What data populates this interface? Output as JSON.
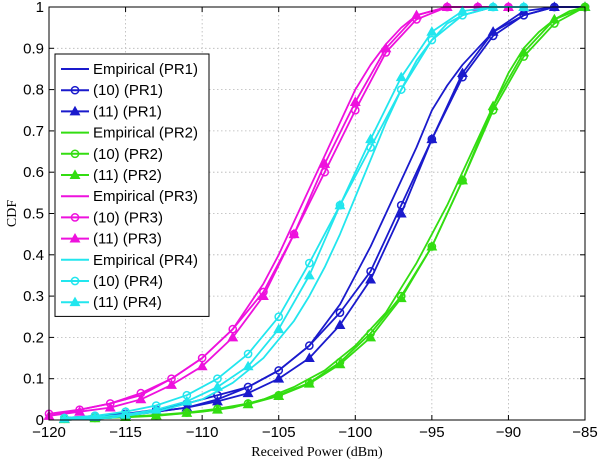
{
  "chart_data": {
    "type": "line",
    "xlabel": "Received Power (dBm)",
    "ylabel": "CDF",
    "xlim": [
      -120,
      -85
    ],
    "ylim": [
      0,
      1
    ],
    "xticks": [
      -120,
      -115,
      -110,
      -105,
      -100,
      -95,
      -90,
      -85
    ],
    "xtick_labels": [
      "−120",
      "−115",
      "−110",
      "−105",
      "−100",
      "−95",
      "−90",
      "−85"
    ],
    "yticks": [
      0,
      0.1,
      0.2,
      0.3,
      0.4,
      0.5,
      0.6,
      0.7,
      0.8,
      0.9,
      1
    ],
    "ytick_labels": [
      "0",
      "0.1",
      "0.2",
      "0.3",
      "0.4",
      "0.5",
      "0.6",
      "0.7",
      "0.8",
      "0.9",
      "1"
    ],
    "grid": true,
    "legend_position": "left",
    "colors": {
      "PR1": "#1a1acc",
      "PR2": "#33dd11",
      "PR3": "#ee11dd",
      "PR4": "#22e6ee"
    },
    "series": [
      {
        "name": "Empirical (PR1)",
        "group": "PR1",
        "marker": "none",
        "x": [
          -119,
          -116,
          -113,
          -111,
          -109,
          -107,
          -105,
          -103,
          -101,
          -100,
          -99,
          -98,
          -97,
          -96,
          -95,
          -94,
          -93,
          -92,
          -91,
          -90,
          -89,
          -88,
          -87,
          -85
        ],
        "y": [
          0,
          0.005,
          0.02,
          0.03,
          0.05,
          0.08,
          0.12,
          0.18,
          0.28,
          0.35,
          0.42,
          0.5,
          0.58,
          0.66,
          0.75,
          0.81,
          0.86,
          0.9,
          0.94,
          0.96,
          0.98,
          0.99,
          1,
          1
        ]
      },
      {
        "name": "(10) (PR1)",
        "group": "PR1",
        "marker": "circle",
        "x": [
          -119,
          -117,
          -115,
          -113,
          -111,
          -109,
          -107,
          -105,
          -103,
          -101,
          -99,
          -97,
          -95,
          -93,
          -91,
          -89,
          -87,
          -85
        ],
        "y": [
          0.005,
          0.01,
          0.015,
          0.025,
          0.04,
          0.06,
          0.08,
          0.12,
          0.18,
          0.26,
          0.36,
          0.52,
          0.68,
          0.83,
          0.93,
          0.98,
          1,
          1
        ]
      },
      {
        "name": "(11) (PR1)",
        "group": "PR1",
        "marker": "triangle",
        "x": [
          -119,
          -117,
          -115,
          -113,
          -111,
          -109,
          -107,
          -105,
          -103,
          -101,
          -99,
          -97,
          -95,
          -93,
          -91,
          -89,
          -87,
          -85
        ],
        "y": [
          0.003,
          0.007,
          0.012,
          0.02,
          0.03,
          0.045,
          0.065,
          0.1,
          0.15,
          0.23,
          0.34,
          0.5,
          0.68,
          0.84,
          0.94,
          0.99,
          1,
          1
        ]
      },
      {
        "name": "Empirical (PR2)",
        "group": "PR2",
        "marker": "none",
        "x": [
          -119,
          -116,
          -113,
          -110,
          -108,
          -106,
          -104,
          -102,
          -100,
          -98,
          -97,
          -96,
          -95,
          -94,
          -93,
          -92,
          -91,
          -90,
          -89,
          -88,
          -87,
          -86,
          -85
        ],
        "y": [
          0,
          0.005,
          0.01,
          0.02,
          0.03,
          0.05,
          0.08,
          0.12,
          0.18,
          0.26,
          0.32,
          0.38,
          0.45,
          0.52,
          0.6,
          0.68,
          0.76,
          0.84,
          0.9,
          0.94,
          0.97,
          0.99,
          1
        ]
      },
      {
        "name": "(10) (PR2)",
        "group": "PR2",
        "marker": "circle",
        "x": [
          -119,
          -117,
          -115,
          -113,
          -111,
          -109,
          -107,
          -105,
          -103,
          -101,
          -99,
          -97,
          -95,
          -93,
          -91,
          -89,
          -87,
          -85
        ],
        "y": [
          0.003,
          0.005,
          0.008,
          0.012,
          0.018,
          0.027,
          0.04,
          0.06,
          0.09,
          0.14,
          0.21,
          0.3,
          0.42,
          0.58,
          0.75,
          0.88,
          0.96,
          1
        ]
      },
      {
        "name": "(11) (PR2)",
        "group": "PR2",
        "marker": "triangle",
        "x": [
          -119,
          -117,
          -115,
          -113,
          -111,
          -109,
          -107,
          -105,
          -103,
          -101,
          -99,
          -97,
          -95,
          -93,
          -91,
          -89,
          -87,
          -85
        ],
        "y": [
          0.002,
          0.004,
          0.007,
          0.011,
          0.017,
          0.025,
          0.038,
          0.058,
          0.088,
          0.135,
          0.2,
          0.295,
          0.42,
          0.58,
          0.76,
          0.89,
          0.97,
          1
        ]
      },
      {
        "name": "Empirical (PR3)",
        "group": "PR3",
        "marker": "none",
        "x": [
          -120,
          -118,
          -116,
          -114,
          -112,
          -110,
          -108,
          -106,
          -105,
          -104,
          -103,
          -102,
          -101,
          -100,
          -99,
          -98,
          -97,
          -96,
          -95,
          -94,
          -93
        ],
        "y": [
          0.01,
          0.025,
          0.04,
          0.06,
          0.1,
          0.15,
          0.22,
          0.33,
          0.4,
          0.48,
          0.56,
          0.64,
          0.72,
          0.8,
          0.86,
          0.91,
          0.95,
          0.98,
          0.99,
          1,
          1
        ]
      },
      {
        "name": "(10) (PR3)",
        "group": "PR3",
        "marker": "circle",
        "x": [
          -120,
          -118,
          -116,
          -114,
          -112,
          -110,
          -108,
          -106,
          -104,
          -102,
          -100,
          -98,
          -96,
          -94,
          -92,
          -90
        ],
        "y": [
          0.015,
          0.025,
          0.04,
          0.065,
          0.1,
          0.15,
          0.22,
          0.31,
          0.45,
          0.6,
          0.75,
          0.89,
          0.97,
          1,
          1,
          1
        ]
      },
      {
        "name": "(11) (PR3)",
        "group": "PR3",
        "marker": "triangle",
        "x": [
          -120,
          -118,
          -116,
          -114,
          -112,
          -110,
          -108,
          -106,
          -104,
          -102,
          -100,
          -98,
          -96,
          -94,
          -92,
          -90
        ],
        "y": [
          0.01,
          0.02,
          0.03,
          0.05,
          0.085,
          0.13,
          0.2,
          0.3,
          0.45,
          0.62,
          0.77,
          0.9,
          0.98,
          1,
          1,
          1
        ]
      },
      {
        "name": "Empirical (PR4)",
        "group": "PR4",
        "marker": "none",
        "x": [
          -119,
          -116,
          -113,
          -110,
          -108,
          -106,
          -104,
          -103,
          -102,
          -101,
          -100,
          -99,
          -98,
          -97,
          -96,
          -95,
          -94,
          -93,
          -92,
          -91
        ],
        "y": [
          0,
          0.005,
          0.02,
          0.05,
          0.09,
          0.15,
          0.24,
          0.3,
          0.37,
          0.45,
          0.54,
          0.63,
          0.72,
          0.8,
          0.87,
          0.92,
          0.96,
          0.98,
          0.99,
          1
        ]
      },
      {
        "name": "(10) (PR4)",
        "group": "PR4",
        "marker": "circle",
        "x": [
          -119,
          -117,
          -115,
          -113,
          -111,
          -109,
          -107,
          -105,
          -103,
          -101,
          -99,
          -97,
          -95,
          -93,
          -91,
          -89
        ],
        "y": [
          0.005,
          0.01,
          0.02,
          0.035,
          0.06,
          0.1,
          0.16,
          0.25,
          0.38,
          0.52,
          0.66,
          0.8,
          0.92,
          0.98,
          1,
          1
        ]
      },
      {
        "name": "(11) (PR4)",
        "group": "PR4",
        "marker": "triangle",
        "x": [
          -119,
          -117,
          -115,
          -113,
          -111,
          -109,
          -107,
          -105,
          -103,
          -101,
          -99,
          -97,
          -95,
          -93,
          -91,
          -89
        ],
        "y": [
          0.003,
          0.007,
          0.013,
          0.025,
          0.045,
          0.08,
          0.13,
          0.22,
          0.35,
          0.52,
          0.68,
          0.83,
          0.94,
          0.99,
          1,
          1
        ]
      }
    ]
  }
}
